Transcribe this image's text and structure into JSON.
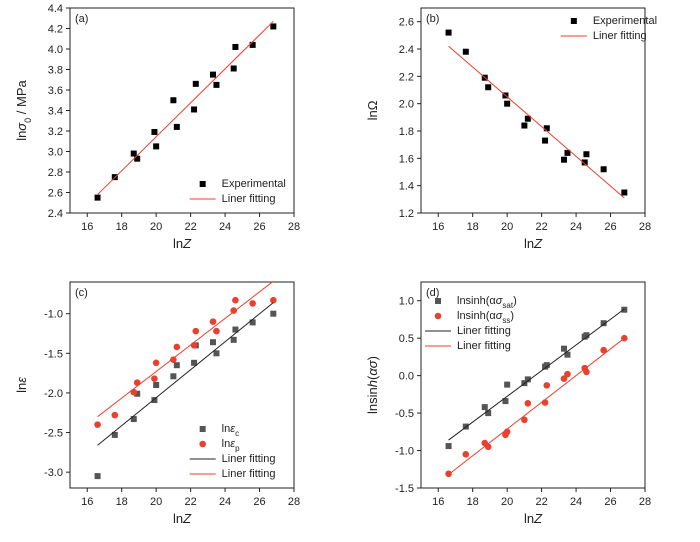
{
  "chart_data": [
    {
      "panel_label": "(a)",
      "type": "scatter",
      "xlabel": "lnZ",
      "ylabel": "lnσ0 / MPa",
      "xlim": [
        15,
        28
      ],
      "ylim": [
        2.4,
        4.4
      ],
      "xticks": [
        16,
        18,
        20,
        22,
        24,
        26,
        28
      ],
      "yticks": [
        2.4,
        2.6,
        2.8,
        3.0,
        3.2,
        3.4,
        3.6,
        3.8,
        4.0,
        4.2,
        4.4
      ],
      "legend_position": "bottom-right",
      "series": [
        {
          "name": "Experimental",
          "marker": "square",
          "color": "#000000",
          "x": [
            16.6,
            17.6,
            18.7,
            18.9,
            19.9,
            20.0,
            21.0,
            21.2,
            22.2,
            22.3,
            23.3,
            23.5,
            24.5,
            24.6,
            25.6,
            26.8
          ],
          "y": [
            2.55,
            2.75,
            2.98,
            2.93,
            3.19,
            3.05,
            3.5,
            3.24,
            3.41,
            3.66,
            3.75,
            3.65,
            3.81,
            4.02,
            4.04,
            4.22
          ]
        },
        {
          "name": "Liner fitting",
          "kind": "line",
          "color": "#e8412f",
          "x": [
            16.6,
            26.8
          ],
          "y": [
            2.58,
            4.27
          ]
        }
      ]
    },
    {
      "panel_label": "(b)",
      "type": "scatter",
      "xlabel": "lnZ",
      "ylabel": "lnΩ",
      "xlim": [
        15,
        28
      ],
      "ylim": [
        1.2,
        2.7
      ],
      "xticks": [
        16,
        18,
        20,
        22,
        24,
        26,
        28
      ],
      "yticks": [
        1.2,
        1.4,
        1.6,
        1.8,
        2.0,
        2.2,
        2.4,
        2.6
      ],
      "legend_position": "top-right",
      "series": [
        {
          "name": "Experimental",
          "marker": "square",
          "color": "#000000",
          "x": [
            16.6,
            17.6,
            18.7,
            18.9,
            19.9,
            20.0,
            21.0,
            21.2,
            22.2,
            22.3,
            23.3,
            23.5,
            24.5,
            24.6,
            25.6,
            26.8
          ],
          "y": [
            2.52,
            2.38,
            2.19,
            2.12,
            2.06,
            2.0,
            1.84,
            1.89,
            1.73,
            1.82,
            1.59,
            1.64,
            1.57,
            1.63,
            1.52,
            1.35
          ]
        },
        {
          "name": "Liner fitting",
          "kind": "line",
          "color": "#e8412f",
          "x": [
            16.6,
            26.8
          ],
          "y": [
            2.42,
            1.31
          ]
        }
      ]
    },
    {
      "panel_label": "(c)",
      "type": "scatter",
      "xlabel": "lnZ",
      "ylabel": "lnε",
      "xlim": [
        15,
        28
      ],
      "ylim": [
        -3.2,
        -0.6
      ],
      "xticks": [
        16,
        18,
        20,
        22,
        24,
        26,
        28
      ],
      "yticks": [
        -3.0,
        -2.5,
        -2.0,
        -1.5,
        -1.0
      ],
      "legend_position": "bottom-right",
      "series": [
        {
          "name": "lnεc",
          "marker": "square",
          "color": "#555555",
          "x": [
            16.6,
            17.6,
            18.7,
            18.9,
            19.9,
            20.0,
            21.0,
            21.2,
            22.2,
            22.3,
            23.3,
            23.5,
            24.5,
            24.6,
            25.6,
            26.8
          ],
          "y": [
            -3.05,
            -2.53,
            -2.33,
            -2.01,
            -2.09,
            -1.9,
            -1.79,
            -1.65,
            -1.62,
            -1.4,
            -1.36,
            -1.5,
            -1.33,
            -1.2,
            -1.11,
            -1.0
          ]
        },
        {
          "name": "lnεp",
          "marker": "circle",
          "color": "#e8412f",
          "x": [
            16.6,
            17.6,
            18.7,
            18.9,
            19.9,
            20.0,
            21.0,
            21.2,
            22.2,
            22.3,
            23.3,
            23.5,
            24.5,
            24.6,
            25.6,
            26.8
          ],
          "y": [
            -2.4,
            -2.28,
            -1.99,
            -1.87,
            -1.82,
            -1.62,
            -1.58,
            -1.42,
            -1.4,
            -1.22,
            -1.1,
            -1.22,
            -0.96,
            -0.83,
            -0.87,
            -0.83
          ]
        },
        {
          "name": "Liner fitting",
          "kind": "line",
          "color": "#222222",
          "x": [
            16.6,
            26.8
          ],
          "y": [
            -2.66,
            -0.86
          ]
        },
        {
          "name": "Liner fitting",
          "kind": "line",
          "color": "#e8412f",
          "x": [
            16.6,
            26.8
          ],
          "y": [
            -2.3,
            -0.59
          ]
        }
      ]
    },
    {
      "panel_label": "(d)",
      "type": "scatter",
      "xlabel": "lnZ",
      "ylabel": "lnsinh(ασ)",
      "xlim": [
        15,
        28
      ],
      "ylim": [
        -1.5,
        1.25
      ],
      "xticks": [
        16,
        18,
        20,
        22,
        24,
        26,
        28
      ],
      "yticks": [
        -1.5,
        -1.0,
        -0.5,
        0.0,
        0.5,
        1.0
      ],
      "legend_position": "top-left",
      "series": [
        {
          "name": "lnsinh(ασsat)",
          "marker": "square",
          "color": "#555555",
          "x": [
            16.6,
            17.6,
            18.7,
            18.9,
            19.9,
            20.0,
            21.0,
            21.2,
            22.2,
            22.3,
            23.3,
            23.5,
            24.5,
            24.6,
            25.6,
            26.8
          ],
          "y": [
            -0.94,
            -0.68,
            -0.42,
            -0.5,
            -0.34,
            -0.12,
            -0.1,
            -0.05,
            0.12,
            0.14,
            0.36,
            0.28,
            0.52,
            0.54,
            0.7,
            0.88
          ]
        },
        {
          "name": "lnsinh(ασss)",
          "marker": "circle",
          "color": "#e8412f",
          "x": [
            16.6,
            17.6,
            18.7,
            18.9,
            19.9,
            20.0,
            21.0,
            21.2,
            22.2,
            22.3,
            23.3,
            23.5,
            24.5,
            24.6,
            25.6,
            26.8
          ],
          "y": [
            -1.31,
            -1.05,
            -0.9,
            -0.95,
            -0.79,
            -0.75,
            -0.59,
            -0.37,
            -0.36,
            -0.13,
            -0.04,
            0.02,
            0.1,
            0.05,
            0.34,
            0.5
          ]
        },
        {
          "name": "Liner fitting",
          "kind": "line",
          "color": "#222222",
          "x": [
            16.6,
            26.8
          ],
          "y": [
            -0.86,
            0.89
          ]
        },
        {
          "name": "Liner fitting",
          "kind": "line",
          "color": "#e8412f",
          "x": [
            16.6,
            26.8
          ],
          "y": [
            -1.32,
            0.5
          ]
        }
      ]
    }
  ]
}
